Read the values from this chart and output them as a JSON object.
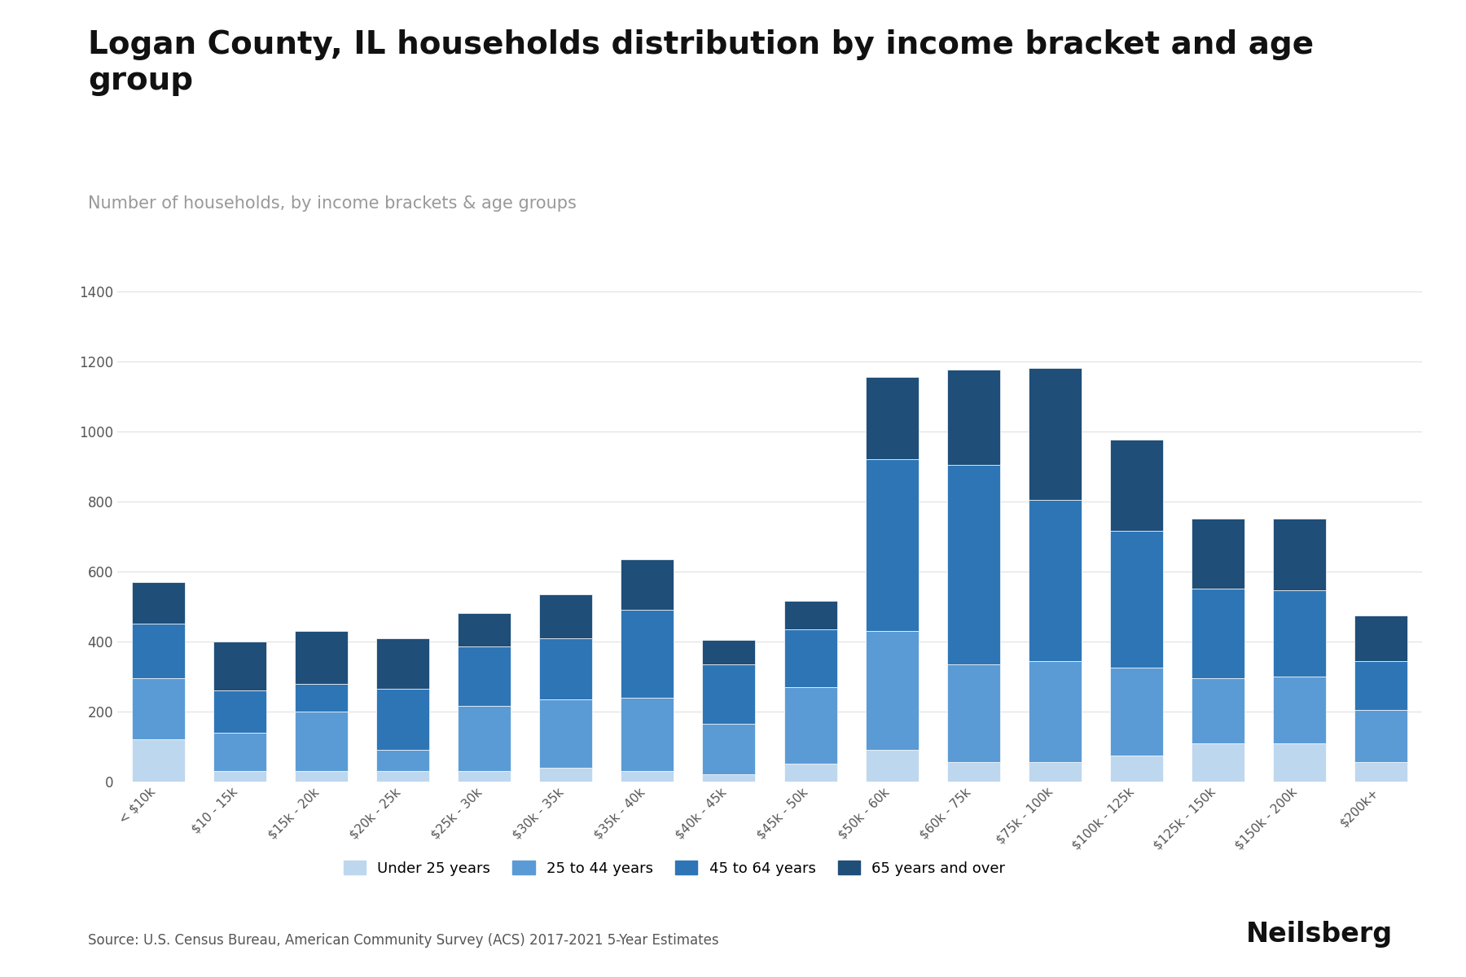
{
  "title": "Logan County, IL households distribution by income bracket and age\ngroup",
  "subtitle": "Number of households, by income brackets & age groups",
  "source": "Source: U.S. Census Bureau, American Community Survey (ACS) 2017-2021 5-Year Estimates",
  "categories": [
    "< $10k",
    "$10 - 15k",
    "$15k - 20k",
    "$20k - 25k",
    "$25k - 30k",
    "$30k - 35k",
    "$35k - 40k",
    "$40k - 45k",
    "$45k - 50k",
    "$50k - 60k",
    "$60k - 75k",
    "$75k - 100k",
    "$100k - 125k",
    "$125k - 150k",
    "$150k - 200k",
    "$200k+"
  ],
  "age_groups": [
    "Under 25 years",
    "25 to 44 years",
    "45 to 64 years",
    "65 years and over"
  ],
  "colors": [
    "#bdd7ee",
    "#5b9bd5",
    "#2e75b6",
    "#1f4e79"
  ],
  "data": {
    "Under 25 years": [
      120,
      30,
      30,
      30,
      30,
      40,
      30,
      20,
      50,
      90,
      55,
      55,
      75,
      110,
      110,
      55
    ],
    "25 to 44 years": [
      175,
      110,
      170,
      60,
      185,
      195,
      210,
      145,
      220,
      340,
      280,
      290,
      250,
      185,
      190,
      150
    ],
    "45 to 64 years": [
      155,
      120,
      80,
      175,
      170,
      175,
      250,
      170,
      165,
      490,
      570,
      460,
      390,
      255,
      245,
      140
    ],
    "65 years and over": [
      120,
      140,
      150,
      145,
      95,
      125,
      145,
      70,
      80,
      235,
      270,
      375,
      260,
      200,
      205,
      130
    ]
  },
  "ylim": [
    0,
    1450
  ],
  "yticks": [
    0,
    200,
    400,
    600,
    800,
    1000,
    1200,
    1400
  ],
  "background_color": "#ffffff",
  "grid_color": "#e0e0e0",
  "title_fontsize": 28,
  "subtitle_fontsize": 15,
  "tick_fontsize": 12,
  "legend_fontsize": 13,
  "source_fontsize": 12,
  "neilsberg_fontsize": 24
}
